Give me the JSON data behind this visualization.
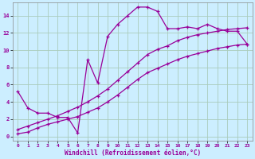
{
  "xlabel": "Windchill (Refroidissement éolien,°C)",
  "bg_color": "#cceeff",
  "grid_color": "#aaccbb",
  "line_color": "#990099",
  "xlim": [
    -0.5,
    23.5
  ],
  "ylim": [
    -0.5,
    15.5
  ],
  "xticks": [
    0,
    1,
    2,
    3,
    4,
    5,
    6,
    7,
    8,
    9,
    10,
    11,
    12,
    13,
    14,
    15,
    16,
    17,
    18,
    19,
    20,
    21,
    22,
    23
  ],
  "yticks": [
    0,
    2,
    4,
    6,
    8,
    10,
    12,
    14
  ],
  "series1_x": [
    0,
    1,
    2,
    3,
    4,
    5,
    6,
    7,
    8,
    9,
    10,
    11,
    12,
    13,
    14,
    15,
    16,
    17,
    18,
    19,
    20,
    21,
    22,
    23
  ],
  "series1_y": [
    5.2,
    3.3,
    2.7,
    2.7,
    2.2,
    2.2,
    0.4,
    8.9,
    6.2,
    11.6,
    13.0,
    14.0,
    15.0,
    15.0,
    14.5,
    12.5,
    12.5,
    12.7,
    12.5,
    13.0,
    12.5,
    12.2,
    12.2,
    10.7
  ],
  "series2_x": [
    0,
    1,
    2,
    3,
    4,
    5,
    6,
    7,
    8,
    9,
    10,
    11,
    12,
    13,
    14,
    15,
    16,
    17,
    18,
    19,
    20,
    21,
    22,
    23
  ],
  "series2_y": [
    0.3,
    0.5,
    1.0,
    1.4,
    1.7,
    2.0,
    2.3,
    2.8,
    3.3,
    4.0,
    4.8,
    5.7,
    6.6,
    7.4,
    7.9,
    8.4,
    8.9,
    9.3,
    9.6,
    9.9,
    10.2,
    10.4,
    10.6,
    10.7
  ],
  "series3_x": [
    0,
    1,
    2,
    3,
    4,
    5,
    6,
    7,
    8,
    9,
    10,
    11,
    12,
    13,
    14,
    15,
    16,
    17,
    18,
    19,
    20,
    21,
    22,
    23
  ],
  "series3_y": [
    0.8,
    1.2,
    1.6,
    2.0,
    2.4,
    2.9,
    3.4,
    4.0,
    4.7,
    5.5,
    6.5,
    7.5,
    8.5,
    9.5,
    10.1,
    10.5,
    11.1,
    11.5,
    11.8,
    12.0,
    12.2,
    12.4,
    12.5,
    12.6
  ]
}
